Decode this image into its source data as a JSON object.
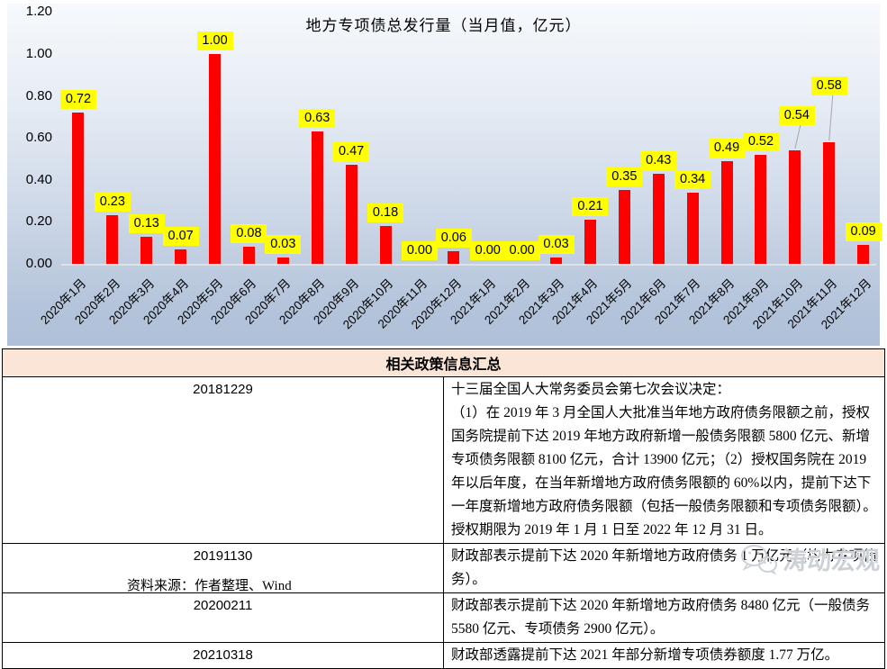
{
  "chart_data": {
    "type": "bar",
    "title": "地方专项债总发行量（当月值，亿元）",
    "categories": [
      "2020年1月",
      "2020年2月",
      "2020年3月",
      "2020年4月",
      "2020年5月",
      "2020年6月",
      "2020年7月",
      "2020年8月",
      "2020年9月",
      "2020年10月",
      "2020年11月",
      "2020年12月",
      "2021年1月",
      "2021年2月",
      "2021年3月",
      "2021年4月",
      "2021年5月",
      "2021年6月",
      "2021年7月",
      "2021年8月",
      "2021年9月",
      "2021年10月",
      "2021年11月",
      "2021年12月"
    ],
    "values": [
      0.72,
      0.23,
      0.13,
      0.07,
      1.0,
      0.08,
      0.03,
      0.63,
      0.47,
      0.18,
      0.0,
      0.06,
      0.0,
      0.0,
      0.03,
      0.21,
      0.35,
      0.43,
      0.34,
      0.49,
      0.52,
      0.54,
      0.58,
      0.09
    ],
    "ylim": [
      0,
      1.2
    ],
    "yticks": [
      0.0,
      0.2,
      0.4,
      0.6,
      0.8,
      1.0,
      1.2
    ],
    "xlabel": "",
    "ylabel": "",
    "grid": false,
    "legend": "none",
    "bar_color": "#fe0000",
    "data_label_bg": "#ffff00",
    "data_label_color": "#000000"
  },
  "table": {
    "header": "相关政策信息汇总",
    "header_bg": "#fbe5d6",
    "rows": [
      {
        "date": "20181229",
        "content": "十三届全国人大常务委员会第七次会议决定：\n（1）在 2019 年 3 月全国人大批准当年地方政府债务限额之前，授权国务院提前下达 2019 年地方政府新增一般债务限额 5800 亿元、新增专项债务限额 8100 亿元，合计 13900 亿元；（2）授权国务院在 2019 年以后年度，在当年新增地方政府债务限额的 60%以内，提前下达下一年度新增地方政府债务限额（包括一般债务限额和专项债务限额）。授权期限为 2019 年 1 月 1 日至 2022 年 12 月 31 日。"
      },
      {
        "date": "20191130",
        "content": "财政部表示提前下达 2020 年新增地方政府债务 1 万亿元（均为专项债务）。"
      },
      {
        "date": "20200211",
        "content": "财政部表示提前下达 2020 年新增地方政府债务 8480 亿元（一般债务 5580 亿元、专项债务 2900 亿元）。"
      },
      {
        "date": "20210318",
        "content": "财政部透露提前下达 2021 年部分新增专项债券额度 1.77 万亿。"
      }
    ]
  },
  "footer": {
    "source": "资料来源：作者整理、Wind",
    "watermark": "涛动宏观",
    "watermark_icon": "wechat-icon"
  }
}
